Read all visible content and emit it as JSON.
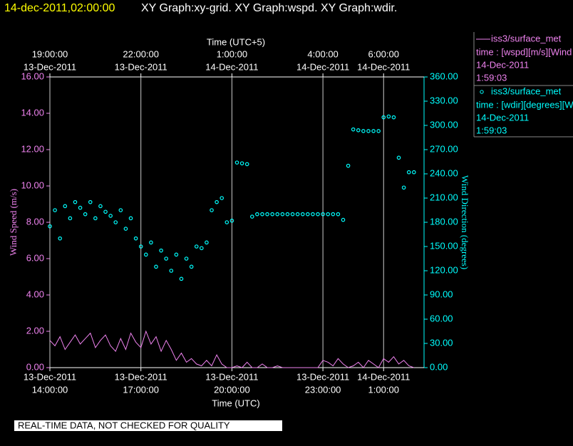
{
  "header": {
    "timestamp": "14-dec-2011,02:00:00",
    "title": "XY Graph:xy-grid.  XY Graph:wspd.  XY Graph:wdir."
  },
  "footer": "REAL-TIME DATA, NOT CHECKED FOR QUALITY",
  "chart_data": {
    "type": "line",
    "x_label": "Time (UTC)",
    "x2_label": "Time (UTC+5)",
    "y_label": "Wind Speed (m/s)",
    "y2_label": "Wind Direction (degrees)",
    "xlim": [
      "2011-12-13T14:00",
      "2011-12-14T02:20"
    ],
    "xticks": [
      {
        "value": "2011-12-13T14:00",
        "label": [
          "13-Dec-2011",
          "14:00:00"
        ]
      },
      {
        "value": "2011-12-13T17:00",
        "label": [
          "13-Dec-2011",
          "17:00:00"
        ]
      },
      {
        "value": "2011-12-13T20:00",
        "label": [
          "13-Dec-2011",
          "20:00:00"
        ]
      },
      {
        "value": "2011-12-13T23:00",
        "label": [
          "13-Dec-2011",
          "23:00:00"
        ]
      },
      {
        "value": "2011-12-14T01:00",
        "label": [
          "14-Dec-2011",
          "1:00:00"
        ]
      }
    ],
    "x2ticks": [
      {
        "value": "2011-12-13T14:00",
        "label": [
          "19:00:00",
          "13-Dec-2011"
        ]
      },
      {
        "value": "2011-12-13T17:00",
        "label": [
          "22:00:00",
          "13-Dec-2011"
        ]
      },
      {
        "value": "2011-12-13T20:00",
        "label": [
          "1:00:00",
          "14-Dec-2011"
        ]
      },
      {
        "value": "2011-12-13T23:00",
        "label": [
          "4:00:00",
          "14-Dec-2011"
        ]
      },
      {
        "value": "2011-12-14T01:00",
        "label": [
          "6:00:00",
          "14-Dec-2011"
        ]
      }
    ],
    "ylim": [
      0,
      16
    ],
    "yticks": [
      {
        "value": 0,
        "label": "0.00"
      },
      {
        "value": 2,
        "label": "2.00"
      },
      {
        "value": 4,
        "label": "4.00"
      },
      {
        "value": 6,
        "label": "6.00"
      },
      {
        "value": 8,
        "label": "8.00"
      },
      {
        "value": 10,
        "label": "10.00"
      },
      {
        "value": 12,
        "label": "12.00"
      },
      {
        "value": 14,
        "label": "14.00"
      },
      {
        "value": 16,
        "label": "16.00"
      }
    ],
    "y2lim": [
      0,
      360
    ],
    "y2ticks": [
      {
        "value": 0,
        "label": "0.00"
      },
      {
        "value": 30,
        "label": "30.00"
      },
      {
        "value": 60,
        "label": "60.00"
      },
      {
        "value": 90,
        "label": "90.00"
      },
      {
        "value": 120,
        "label": "120.00"
      },
      {
        "value": 150,
        "label": "150.00"
      },
      {
        "value": 180,
        "label": "180.00"
      },
      {
        "value": 210,
        "label": "210.00"
      },
      {
        "value": 240,
        "label": "240.00"
      },
      {
        "value": 270,
        "label": "270.00"
      },
      {
        "value": 300,
        "label": "300.00"
      },
      {
        "value": 330,
        "label": "330.00"
      },
      {
        "value": 360,
        "label": "360.00"
      }
    ],
    "grid": true,
    "x": [
      "2011-12-13T14:00",
      "2011-12-13T14:10",
      "2011-12-13T14:20",
      "2011-12-13T14:30",
      "2011-12-13T14:40",
      "2011-12-13T14:50",
      "2011-12-13T15:00",
      "2011-12-13T15:10",
      "2011-12-13T15:20",
      "2011-12-13T15:30",
      "2011-12-13T15:40",
      "2011-12-13T15:50",
      "2011-12-13T16:00",
      "2011-12-13T16:10",
      "2011-12-13T16:20",
      "2011-12-13T16:30",
      "2011-12-13T16:40",
      "2011-12-13T16:50",
      "2011-12-13T17:00",
      "2011-12-13T17:10",
      "2011-12-13T17:20",
      "2011-12-13T17:30",
      "2011-12-13T17:40",
      "2011-12-13T17:50",
      "2011-12-13T18:00",
      "2011-12-13T18:10",
      "2011-12-13T18:20",
      "2011-12-13T18:30",
      "2011-12-13T18:40",
      "2011-12-13T18:50",
      "2011-12-13T19:00",
      "2011-12-13T19:10",
      "2011-12-13T19:20",
      "2011-12-13T19:30",
      "2011-12-13T19:40",
      "2011-12-13T19:50",
      "2011-12-13T20:00",
      "2011-12-13T20:10",
      "2011-12-13T20:20",
      "2011-12-13T20:30",
      "2011-12-13T20:40",
      "2011-12-13T20:50",
      "2011-12-13T21:00",
      "2011-12-13T21:10",
      "2011-12-13T21:20",
      "2011-12-13T21:30",
      "2011-12-13T21:40",
      "2011-12-13T21:50",
      "2011-12-13T22:00",
      "2011-12-13T22:10",
      "2011-12-13T22:20",
      "2011-12-13T22:30",
      "2011-12-13T22:40",
      "2011-12-13T22:50",
      "2011-12-13T23:00",
      "2011-12-13T23:10",
      "2011-12-13T23:20",
      "2011-12-13T23:30",
      "2011-12-13T23:40",
      "2011-12-13T23:50",
      "2011-12-14T00:00",
      "2011-12-14T00:10",
      "2011-12-14T00:20",
      "2011-12-14T00:30",
      "2011-12-14T00:40",
      "2011-12-14T00:50",
      "2011-12-14T01:00",
      "2011-12-14T01:10",
      "2011-12-14T01:20",
      "2011-12-14T01:30",
      "2011-12-14T01:40",
      "2011-12-14T01:50",
      "2011-12-14T02:00"
    ],
    "series": [
      {
        "name": "iss3/surface_met",
        "type": "line",
        "color": "#ee82ee",
        "legend_text": [
          "time : [wspd][m/s][Wind",
          "14-Dec-2011",
          "1:59:03"
        ],
        "values": [
          1.5,
          1.2,
          1.7,
          1.0,
          1.4,
          1.8,
          1.3,
          1.6,
          1.9,
          1.1,
          1.5,
          1.8,
          1.2,
          0.9,
          1.6,
          1.0,
          1.9,
          1.4,
          1.1,
          2.0,
          1.3,
          1.7,
          0.9,
          1.5,
          1.0,
          0.4,
          0.8,
          0.3,
          0.5,
          0.2,
          0.1,
          0.4,
          0.1,
          0.7,
          0.2,
          0.0,
          0.0,
          0.1,
          0.0,
          0.3,
          0.0,
          0.0,
          0.2,
          0.0,
          0.0,
          0.1,
          0.0,
          0.0,
          0.0,
          0.0,
          0.0,
          0.0,
          0.0,
          0.0,
          0.4,
          0.3,
          0.1,
          0.5,
          0.2,
          0.0,
          0.1,
          0.3,
          0.0,
          0.4,
          0.2,
          0.0,
          0.5,
          0.3,
          0.6,
          0.2,
          0.4,
          0.1,
          0.0
        ]
      },
      {
        "name": "iss3/surface_met",
        "type": "scatter",
        "axis": "y2",
        "color": "#00ffff",
        "legend_text": [
          "time : [wdir][degrees][W",
          "14-Dec-2011",
          "1:59:03"
        ],
        "values": [
          175,
          195,
          160,
          200,
          185,
          205,
          198,
          190,
          205,
          185,
          200,
          193,
          188,
          180,
          195,
          172,
          185,
          160,
          150,
          140,
          155,
          125,
          145,
          135,
          120,
          140,
          110,
          135,
          125,
          150,
          148,
          155,
          195,
          205,
          210,
          180,
          182,
          254,
          253,
          252,
          187,
          190,
          190,
          190,
          190,
          190,
          190,
          190,
          190,
          190,
          190,
          190,
          190,
          190,
          190,
          190,
          190,
          190,
          183,
          250,
          295,
          294,
          293,
          293,
          293,
          293,
          310,
          311,
          310,
          260,
          223,
          242,
          242
        ]
      }
    ]
  }
}
